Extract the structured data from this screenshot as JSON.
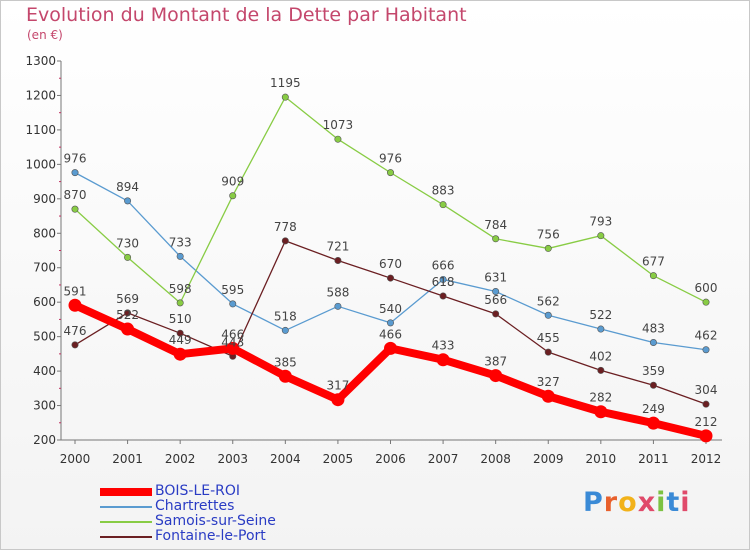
{
  "header": {
    "title": "Evolution du Montant de la Dette par Habitant",
    "subtitle": "(en €)"
  },
  "logo": {
    "text": "Proxiti",
    "letter_colors": [
      "#3a8ad6",
      "#e8602c",
      "#f2b21a",
      "#e04a6a",
      "#7cc242",
      "#3a8ad6",
      "#e04a6a"
    ]
  },
  "chart_data": {
    "type": "line",
    "title": "Evolution du Montant de la Dette par Habitant",
    "subtitle": "(en €)",
    "xlabel": "",
    "ylabel": "",
    "ylim": [
      200,
      1300
    ],
    "yticks": [
      200,
      300,
      400,
      500,
      600,
      700,
      800,
      900,
      1000,
      1100,
      1200,
      1300
    ],
    "grid": false,
    "legend_position": "bottom-left",
    "categories": [
      "2000",
      "2001",
      "2002",
      "2003",
      "2004",
      "2005",
      "2006",
      "2007",
      "2008",
      "2009",
      "2010",
      "2011",
      "2012"
    ],
    "series": [
      {
        "name": "BOIS-LE-ROI",
        "color": "#ff0000",
        "highlight": true,
        "values": [
          591,
          522,
          449,
          466,
          385,
          317,
          466,
          433,
          387,
          327,
          282,
          249,
          212
        ]
      },
      {
        "name": "Chartrettes",
        "color": "#5a9bd0",
        "values": [
          976,
          894,
          733,
          595,
          518,
          588,
          540,
          666,
          631,
          562,
          522,
          483,
          462
        ]
      },
      {
        "name": "Samois-sur-Seine",
        "color": "#88cc44",
        "values": [
          870,
          730,
          598,
          909,
          1195,
          1073,
          976,
          883,
          784,
          756,
          793,
          677,
          600
        ]
      },
      {
        "name": "Fontaine-le-Port",
        "color": "#6b1f22",
        "values": [
          476,
          569,
          510,
          443,
          778,
          721,
          670,
          618,
          566,
          455,
          402,
          359,
          304
        ]
      }
    ]
  }
}
